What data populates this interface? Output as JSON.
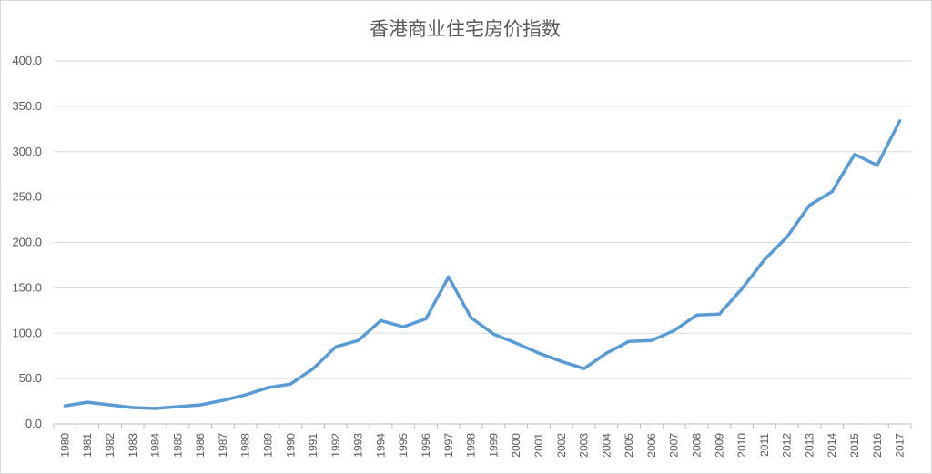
{
  "chart_data": {
    "type": "line",
    "title": "香港商业住宅房价指数",
    "xlabel": "",
    "ylabel": "",
    "ylim": [
      0,
      400
    ],
    "yticks": [
      "0.0",
      "50.0",
      "100.0",
      "150.0",
      "200.0",
      "250.0",
      "300.0",
      "350.0",
      "400.0"
    ],
    "grid": true,
    "legend": "none",
    "line_color": "#5b9bd5",
    "categories": [
      "1980",
      "1981",
      "1982",
      "1983",
      "1984",
      "1985",
      "1986",
      "1987",
      "1988",
      "1989",
      "1990",
      "1991",
      "1992",
      "1993",
      "1994",
      "1995",
      "1996",
      "1997",
      "1998",
      "1999",
      "2000",
      "2001",
      "2002",
      "2003",
      "2004",
      "2005",
      "2006",
      "2007",
      "2008",
      "2009",
      "2010",
      "2011",
      "2012",
      "2013",
      "2014",
      "2015",
      "2016",
      "2017"
    ],
    "series": [
      {
        "values": [
          20,
          24,
          21,
          18,
          17,
          19,
          21,
          26,
          32,
          40,
          44,
          61,
          85,
          92,
          114,
          107,
          116,
          162,
          117,
          99,
          89,
          78,
          69,
          61,
          78,
          91,
          92,
          103,
          120,
          121,
          149,
          181,
          206,
          241,
          256,
          297,
          285,
          334
        ]
      }
    ]
  }
}
